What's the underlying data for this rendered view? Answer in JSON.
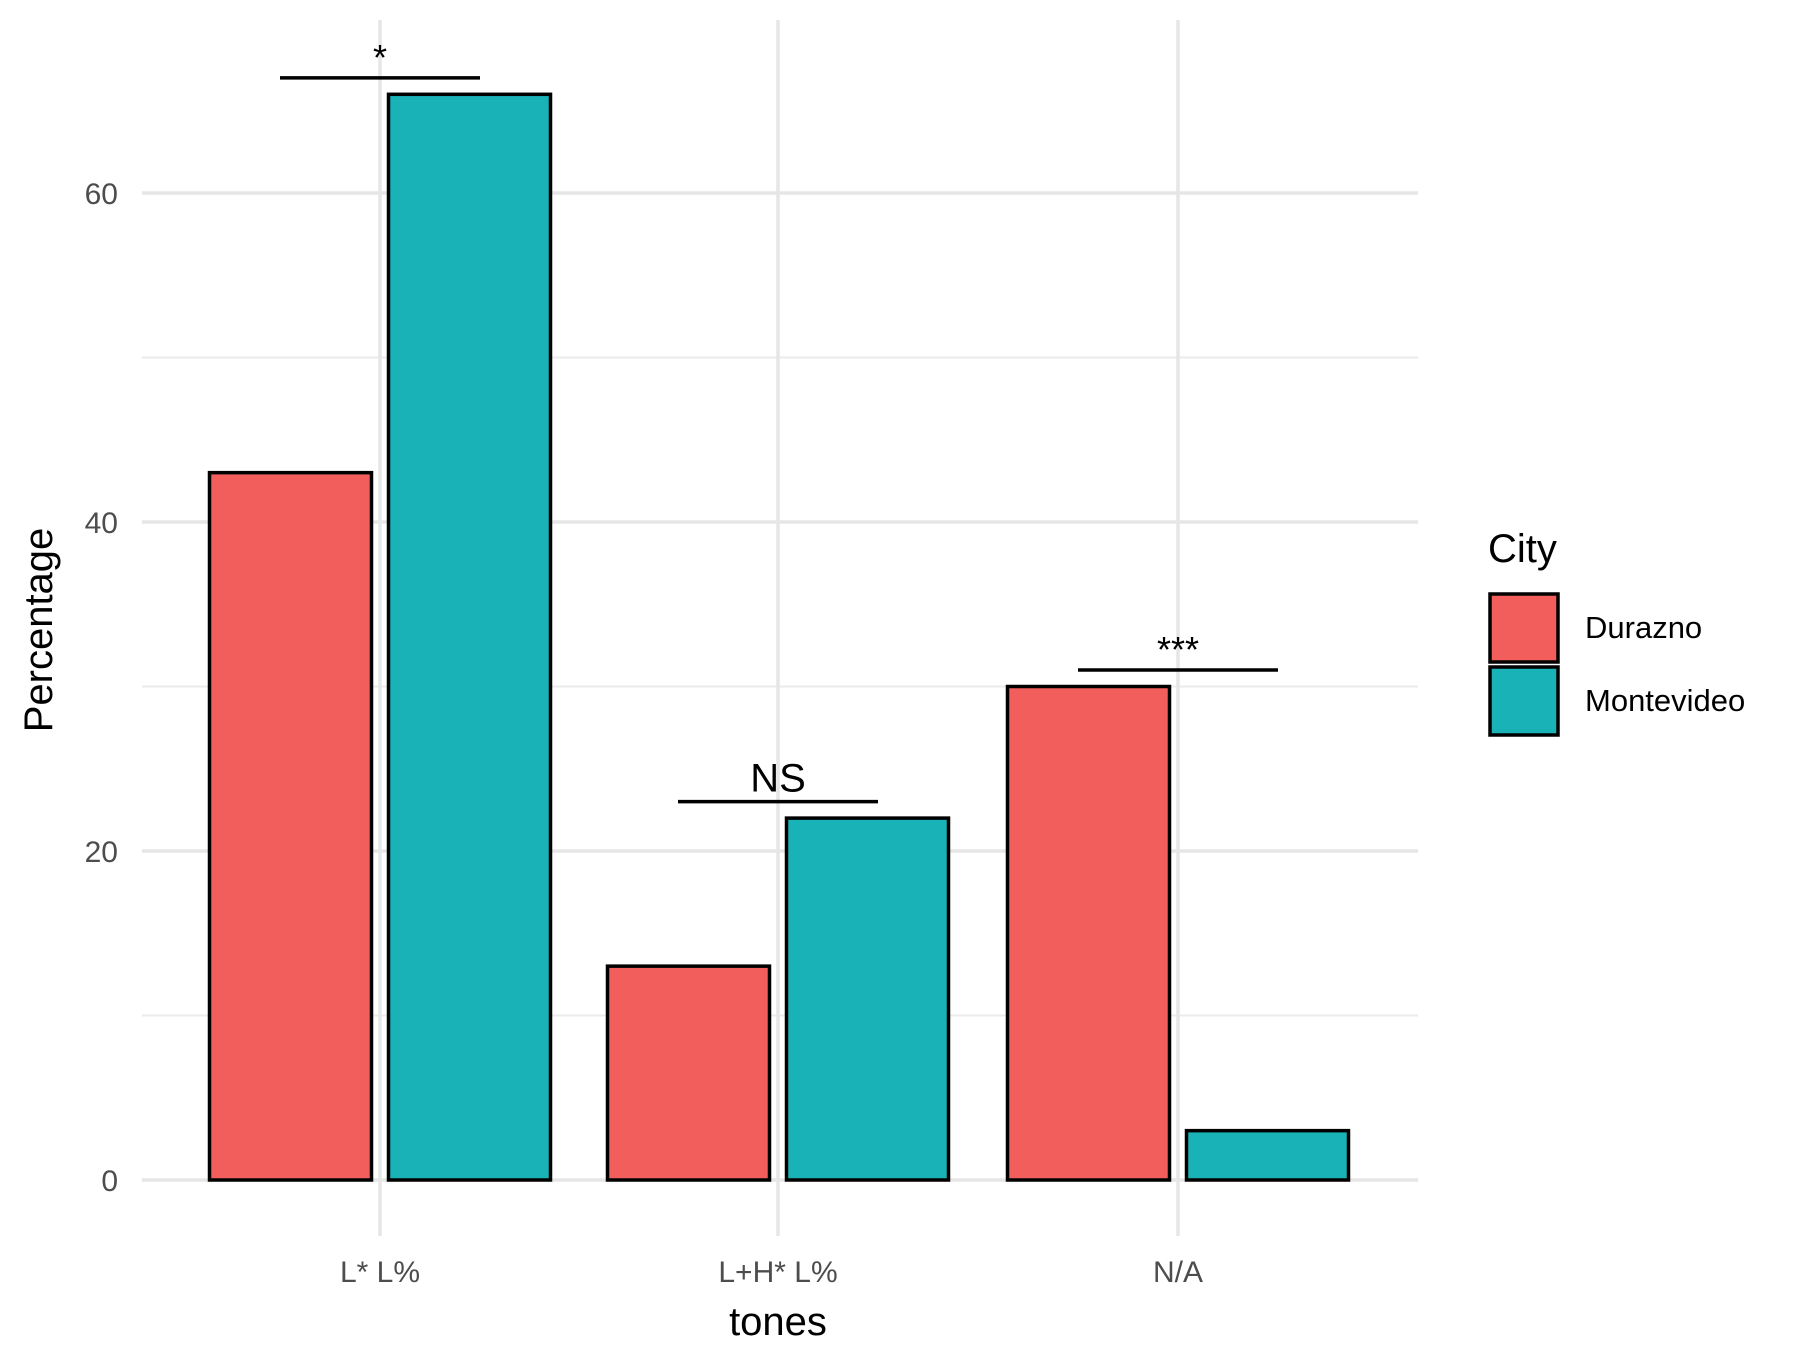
{
  "chart_data": {
    "type": "bar",
    "title": "",
    "xlabel": "tones",
    "ylabel": "Percentage",
    "categories": [
      "L* L%",
      "L+H* L%",
      "N/A"
    ],
    "series": [
      {
        "name": "Durazno",
        "values": [
          43,
          13,
          30
        ],
        "color": "#F25E5B"
      },
      {
        "name": "Montevideo",
        "values": [
          66,
          22,
          3
        ],
        "color": "#19B2B7"
      }
    ],
    "ylim": [
      0,
      70
    ],
    "yticks": [
      0,
      20,
      40,
      60
    ],
    "grid": true,
    "legend": {
      "title": "City",
      "position": "right"
    },
    "annotations": [
      {
        "category": "L* L%",
        "label": "*",
        "y": 67
      },
      {
        "category": "L+H* L%",
        "label": "NS",
        "y": 23
      },
      {
        "category": "N/A",
        "label": "***",
        "y": 31
      }
    ]
  }
}
